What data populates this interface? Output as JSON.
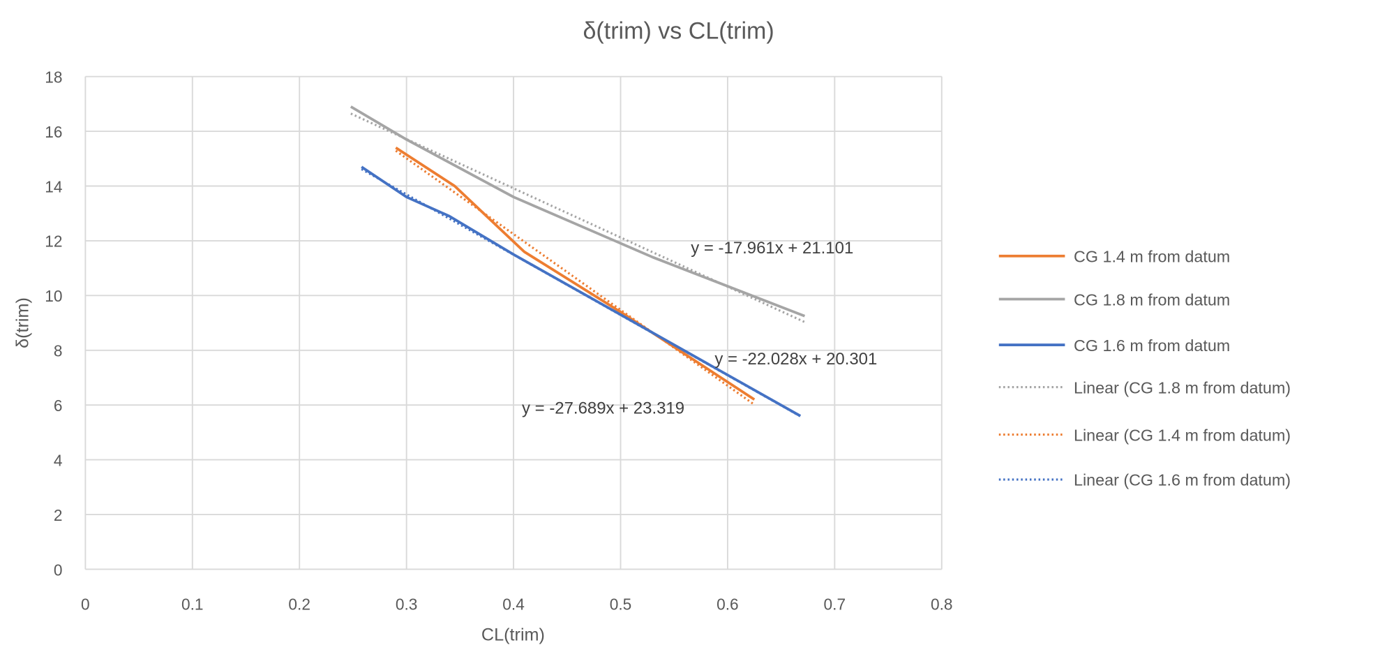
{
  "chart_data": {
    "type": "line",
    "title": "δ(trim) vs CL(trim)",
    "xlabel": "CL(trim)",
    "ylabel": "δ(trim)",
    "xlim": [
      0,
      0.8
    ],
    "ylim": [
      0,
      18
    ],
    "xticks": [
      "0",
      "0.1",
      "0.2",
      "0.3",
      "0.4",
      "0.5",
      "0.6",
      "0.7",
      "0.8"
    ],
    "yticks": [
      "0",
      "2",
      "4",
      "6",
      "8",
      "10",
      "12",
      "14",
      "16",
      "18"
    ],
    "grid": true,
    "legend_position": "right",
    "series": [
      {
        "name": "CG 1.4 m from datum",
        "color": "#ED7D31",
        "style": "solid",
        "x": [
          0.29,
          0.345,
          0.41,
          0.5,
          0.625
        ],
        "y": [
          15.4,
          14.0,
          11.6,
          9.4,
          6.2
        ]
      },
      {
        "name": "CG 1.8 m from datum",
        "color": "#A5A5A5",
        "style": "solid",
        "x": [
          0.248,
          0.3,
          0.4,
          0.53,
          0.672
        ],
        "y": [
          16.9,
          15.7,
          13.6,
          11.4,
          9.25
        ]
      },
      {
        "name": "CG 1.6 m from datum",
        "color": "#4472C4",
        "style": "solid",
        "x": [
          0.258,
          0.3,
          0.34,
          0.4,
          0.5,
          0.668
        ],
        "y": [
          14.7,
          13.6,
          12.9,
          11.5,
          9.3,
          5.6
        ]
      }
    ],
    "trendlines": [
      {
        "name": "Linear (CG 1.8 m from datum)",
        "color": "#A5A5A5",
        "slope": -17.961,
        "intercept": 21.101,
        "x_range": [
          0.248,
          0.672
        ],
        "equation": "y = -17.961x + 21.101"
      },
      {
        "name": "Linear (CG 1.4 m from datum)",
        "color": "#ED7D31",
        "slope": -27.689,
        "intercept": 23.319,
        "x_range": [
          0.29,
          0.625
        ],
        "equation": "y = -27.689x + 23.319"
      },
      {
        "name": "Linear (CG 1.6 m from datum)",
        "color": "#4472C4",
        "slope": -22.028,
        "intercept": 20.301,
        "x_range": [
          0.258,
          0.668
        ],
        "equation": "y = -22.028x + 20.301"
      }
    ],
    "legend": [
      "CG 1.4 m from datum",
      "CG 1.8 m from datum",
      "CG 1.6 m from datum",
      "Linear (CG 1.8 m from datum)",
      "Linear (CG 1.4 m from datum)",
      "Linear (CG 1.6 m from datum)"
    ]
  }
}
